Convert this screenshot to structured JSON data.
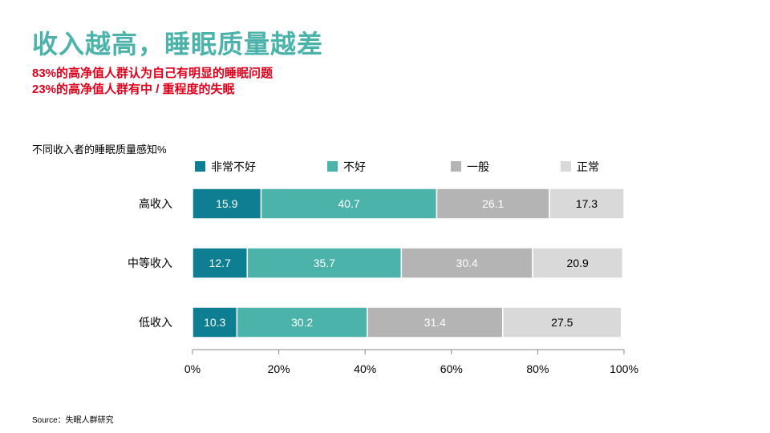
{
  "slide": {
    "title": "收入越高，睡眠质量越差",
    "highlights": [
      "83%的高净值人群认为自己有明显的睡眠问题",
      "23%的高净值人群有中 / 重程度的失眠"
    ],
    "source": "Source：失眠人群研究"
  },
  "colors": {
    "title": "#4bb3aa",
    "highlight": "#e0001b",
    "series": [
      "#0e7f93",
      "#4bb3aa",
      "#b4b4b4",
      "#d9d9d9"
    ],
    "label_light": "#ffffff",
    "label_dark": "#000000"
  },
  "chart_data": {
    "type": "bar",
    "orientation": "horizontal",
    "stacked": "percent",
    "title": "不同收入者的睡眠质量感知%",
    "categories": [
      "高收入",
      "中等收入",
      "低收入"
    ],
    "series": [
      {
        "name": "非常不好",
        "values": [
          15.9,
          12.7,
          10.3
        ]
      },
      {
        "name": "不好",
        "values": [
          40.7,
          35.7,
          30.2
        ]
      },
      {
        "name": "一般",
        "values": [
          26.1,
          30.4,
          31.4
        ]
      },
      {
        "name": "正常",
        "values": [
          17.3,
          20.9,
          27.5
        ]
      }
    ],
    "xlim": [
      0,
      100
    ],
    "xticks": [
      "0%",
      "20%",
      "40%",
      "60%",
      "80%",
      "100%"
    ],
    "legend": "top",
    "grid": false
  }
}
